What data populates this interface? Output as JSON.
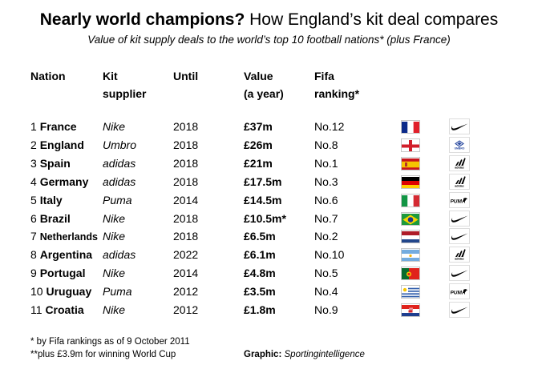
{
  "title": {
    "bold": "Nearly world champions?",
    "rest": " How England’s kit deal compares"
  },
  "subtitle": "Value of kit supply deals to the world’s top 10 football nations* (plus France)",
  "headers": {
    "nation": "Nation",
    "supplier_1": "Kit",
    "supplier_2": "supplier",
    "until": "Until",
    "value_1": "Value",
    "value_2": "(a year)",
    "rank_1": "Fifa",
    "rank_2": "ranking*"
  },
  "rows": [
    {
      "num": "1",
      "nation": "France",
      "supplier": "Nike",
      "until": "2018",
      "value": "£37m",
      "rank": "No.12",
      "flag": "france-flag",
      "logo": "nike-logo"
    },
    {
      "num": "2",
      "nation": "England",
      "supplier": "Umbro",
      "until": "2018",
      "value": "£26m",
      "rank": "No.8",
      "flag": "england-flag",
      "logo": "umbro-logo"
    },
    {
      "num": "3",
      "nation": "Spain",
      "supplier": "adidas",
      "until": "2018",
      "value": "£21m",
      "rank": "No.1",
      "flag": "spain-flag",
      "logo": "adidas-logo"
    },
    {
      "num": "4",
      "nation": "Germany",
      "supplier": "adidas",
      "until": "2018",
      "value": "£17.5m",
      "rank": "No.3",
      "flag": "germany-flag",
      "logo": "adidas-logo"
    },
    {
      "num": "5",
      "nation": "Italy",
      "supplier": "Puma",
      "until": "2014",
      "value": "£14.5m",
      "rank": "No.6",
      "flag": "italy-flag",
      "logo": "puma-logo"
    },
    {
      "num": "6",
      "nation": "Brazil",
      "supplier": "Nike",
      "until": "2018",
      "value": "£10.5m*",
      "rank": "No.7",
      "flag": "brazil-flag",
      "logo": "nike-logo"
    },
    {
      "num": "7",
      "nation": "Netherlands",
      "supplier": "Nike",
      "until": "2018",
      "value": "£6.5m",
      "rank": "No.2",
      "flag": "netherlands-flag",
      "logo": "nike-logo"
    },
    {
      "num": "8",
      "nation": "Argentina",
      "supplier": "adidas",
      "until": "2022",
      "value": "£6.1m",
      "rank": "No.10",
      "flag": "argentina-flag",
      "logo": "adidas-logo"
    },
    {
      "num": "9",
      "nation": "Portugal",
      "supplier": "Nike",
      "until": "2014",
      "value": "£4.8m",
      "rank": "No.5",
      "flag": "portugal-flag",
      "logo": "nike-logo"
    },
    {
      "num": "10",
      "nation": "Uruguay",
      "supplier": "Puma",
      "until": "2012",
      "value": "£3.5m",
      "rank": "No.4",
      "flag": "uruguay-flag",
      "logo": "puma-logo"
    },
    {
      "num": "11",
      "nation": "Croatia",
      "supplier": "Nike",
      "until": "2012",
      "value": "£1.8m",
      "rank": "No.9",
      "flag": "croatia-flag",
      "logo": "nike-logo"
    }
  ],
  "footnotes": [
    "* by Fifa rankings as of 9 October 2011",
    "**plus £3.9m for winning World Cup"
  ],
  "credit": {
    "label": "Graphic:",
    "source": "Sportingintelligence"
  },
  "colors": {
    "text": "#000000",
    "background": "#ffffff"
  }
}
